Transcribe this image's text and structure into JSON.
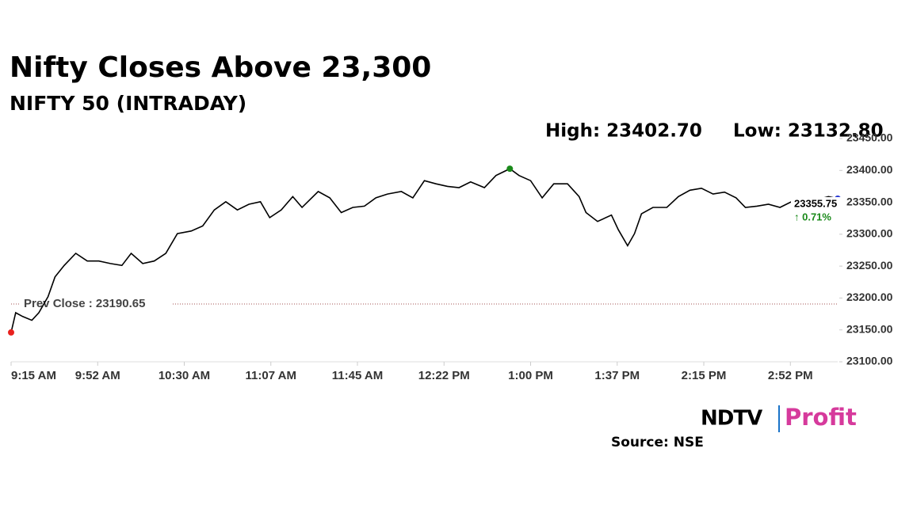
{
  "chart_data": {
    "type": "line",
    "title": "Nifty Closes Above 23,300",
    "subtitle": "NIFTY 50 (INTRADAY)",
    "annotations": [
      "High: 23402.70",
      "Low: 23132.80"
    ],
    "x": [
      555,
      557,
      560,
      564,
      567,
      571,
      574,
      578,
      583,
      588,
      593,
      598,
      603,
      607,
      612,
      617,
      622,
      627,
      633,
      638,
      643,
      648,
      653,
      658,
      663,
      667,
      672,
      677,
      681,
      688,
      693,
      698,
      703,
      708,
      713,
      718,
      724,
      729,
      734,
      739,
      744,
      749,
      754,
      760,
      765,
      771,
      775,
      780,
      785,
      790,
      796,
      801,
      804,
      809,
      815,
      818,
      822,
      825,
      828,
      833,
      839,
      844,
      849,
      854,
      859,
      864,
      869,
      873,
      878,
      883,
      888,
      893,
      899,
      904,
      909,
      913
    ],
    "values": [
      23146,
      23177,
      23171,
      23165,
      23177,
      23202,
      23233,
      23251,
      23270,
      23258,
      23258,
      23254,
      23251,
      23270,
      23254,
      23258,
      23270,
      23301,
      23305,
      23313,
      23338,
      23351,
      23338,
      23347,
      23351,
      23326,
      23338,
      23359,
      23342,
      23367,
      23357,
      23334,
      23342,
      23344,
      23357,
      23363,
      23367,
      23357,
      23384,
      23379,
      23375,
      23373,
      23382,
      23373,
      23392,
      23402.7,
      23392,
      23384,
      23357,
      23379,
      23379,
      23359,
      23334,
      23320,
      23330,
      23307,
      23282,
      23301,
      23332,
      23342,
      23342,
      23359,
      23369,
      23372,
      23363,
      23366,
      23357,
      23342,
      23344,
      23347,
      23342,
      23351,
      23357,
      23354,
      23359,
      23355.75
    ],
    "color": "#000000",
    "markers": [
      {
        "at": 0,
        "color": "#e8211e"
      },
      {
        "at": 45,
        "color": "#1a8a1a"
      },
      {
        "at": 75,
        "color": "#1f2fd0"
      }
    ],
    "end_labels": [
      "23355.75",
      "↑ 0.71%"
    ],
    "end_label_colors": [
      "#000000",
      "#1a8a1a"
    ],
    "reference_line": {
      "value": 23190.65,
      "label": "Prev Close : 23190.65",
      "color": "#a05050"
    },
    "xlim": [
      555,
      913
    ],
    "xticks": [
      {
        "value": 555,
        "label": "9:15 AM"
      },
      {
        "value": 592.5,
        "label": "9:52 AM"
      },
      {
        "value": 630,
        "label": "10:30 AM"
      },
      {
        "value": 667.5,
        "label": "11:07 AM"
      },
      {
        "value": 705,
        "label": "11:45 AM"
      },
      {
        "value": 742.5,
        "label": "12:22 PM"
      },
      {
        "value": 780,
        "label": "1:00 PM"
      },
      {
        "value": 817.5,
        "label": "1:37 PM"
      },
      {
        "value": 855,
        "label": "2:15 PM"
      },
      {
        "value": 892.5,
        "label": "2:52 PM"
      }
    ],
    "ylim": [
      23100,
      23450
    ],
    "yticks": [
      {
        "value": 23100,
        "label": "23100.00"
      },
      {
        "value": 23150,
        "label": "23150.00"
      },
      {
        "value": 23200,
        "label": "23200.00"
      },
      {
        "value": 23250,
        "label": "23250.00"
      },
      {
        "value": 23300,
        "label": "23300.00"
      },
      {
        "value": 23350,
        "label": "23350.00"
      },
      {
        "value": 23400,
        "label": "23400.00"
      },
      {
        "value": 23450,
        "label": "23450.00"
      }
    ],
    "grid": false
  },
  "logo": {
    "left": "NDTV",
    "right": "Profit"
  },
  "source": "Source: NSE"
}
